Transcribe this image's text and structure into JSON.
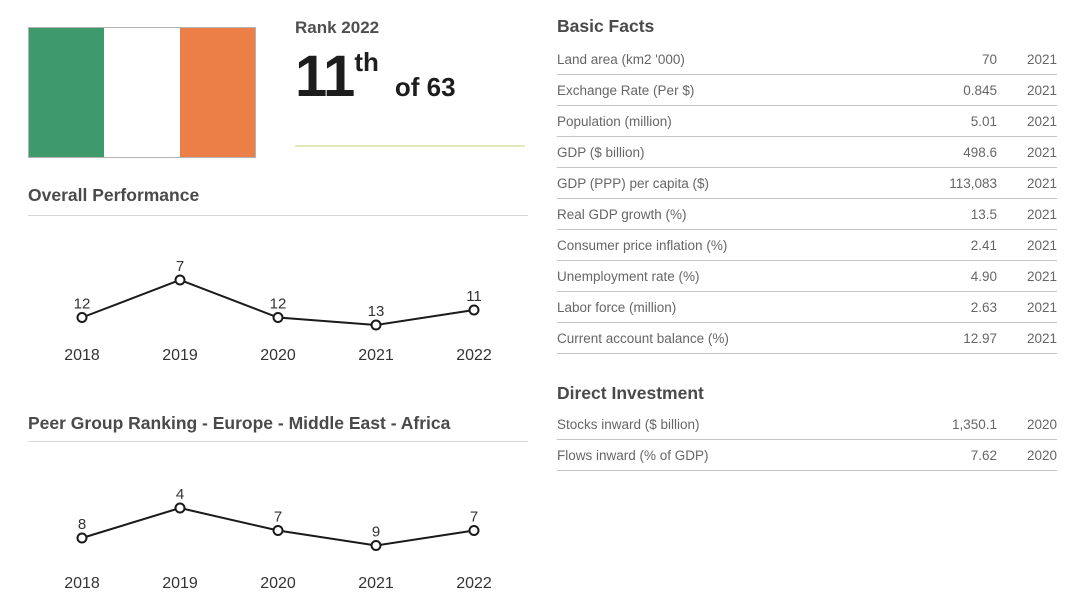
{
  "header": {
    "flag": {
      "country": "Ireland",
      "green": "#3E9A6A",
      "white": "#FFFFFF",
      "orange": "#EC7F47"
    },
    "rank": {
      "label": "Rank 2022",
      "value": "11",
      "suffix": "th",
      "of": "of 63"
    }
  },
  "chart_data": [
    {
      "type": "line",
      "title": "Overall Performance",
      "categories": [
        "2018",
        "2019",
        "2020",
        "2021",
        "2022"
      ],
      "values": [
        12,
        7,
        12,
        13,
        11
      ],
      "point_style": "open-circle",
      "line_color": "#1a1a1a",
      "label_color": "#333333",
      "data_labels": true,
      "grid": false,
      "legend": "none"
    },
    {
      "type": "line",
      "title": "Peer Group Ranking - Europe - Middle East - Africa",
      "categories": [
        "2018",
        "2019",
        "2020",
        "2021",
        "2022"
      ],
      "values": [
        8,
        4,
        7,
        9,
        7
      ],
      "point_style": "open-circle",
      "line_color": "#1a1a1a",
      "label_color": "#333333",
      "data_labels": true,
      "grid": false,
      "legend": "none"
    }
  ],
  "sections": {
    "basic_facts": {
      "title": "Basic Facts",
      "rows": [
        {
          "label": "Land area (km2 '000)",
          "value": "70",
          "year": "2021"
        },
        {
          "label": "Exchange Rate (Per $)",
          "value": "0.845",
          "year": "2021"
        },
        {
          "label": "Population (million)",
          "value": "5.01",
          "year": "2021"
        },
        {
          "label": "GDP ($ billion)",
          "value": "498.6",
          "year": "2021"
        },
        {
          "label": "GDP (PPP) per capita ($)",
          "value": "113,083",
          "year": "2021"
        },
        {
          "label": "Real GDP growth (%)",
          "value": "13.5",
          "year": "2021"
        },
        {
          "label": "Consumer price inflation (%)",
          "value": "2.41",
          "year": "2021"
        },
        {
          "label": "Unemployment rate (%)",
          "value": "4.90",
          "year": "2021"
        },
        {
          "label": "Labor force (million)",
          "value": "2.63",
          "year": "2021"
        },
        {
          "label": "Current account balance (%)",
          "value": "12.97",
          "year": "2021"
        }
      ]
    },
    "direct_investment": {
      "title": "Direct Investment",
      "rows": [
        {
          "label": "Stocks inward ($ billion)",
          "value": "1,350.1",
          "year": "2020"
        },
        {
          "label": "Flows inward (% of GDP)",
          "value": "7.62",
          "year": "2020"
        }
      ]
    }
  },
  "colors": {
    "heading": "#4a4a4a",
    "table_text": "#666666",
    "rank_separator": "#e2e7be",
    "rule": "#d6d6d6"
  }
}
